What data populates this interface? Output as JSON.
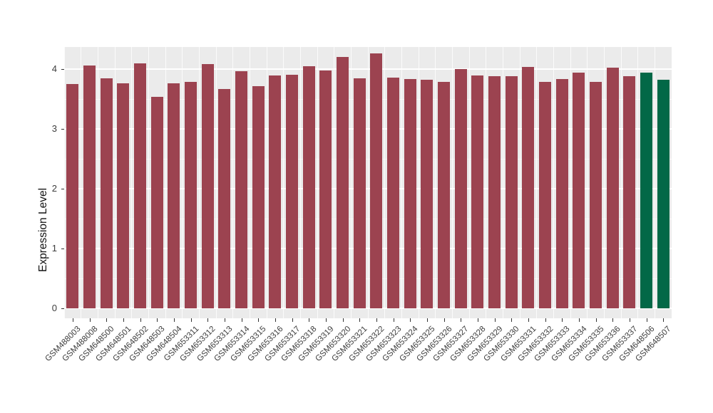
{
  "chart_data": {
    "type": "bar",
    "title": "",
    "xlabel": "",
    "ylabel": "Expression Level",
    "categories": [
      "GSM488003",
      "GSM488008",
      "GSM648500",
      "GSM648501",
      "GSM648502",
      "GSM648503",
      "GSM648504",
      "GSM653311",
      "GSM653312",
      "GSM653313",
      "GSM653314",
      "GSM653315",
      "GSM653316",
      "GSM653317",
      "GSM653318",
      "GSM653319",
      "GSM653320",
      "GSM653321",
      "GSM653322",
      "GSM653323",
      "GSM653324",
      "GSM653325",
      "GSM653326",
      "GSM653327",
      "GSM653328",
      "GSM653329",
      "GSM653330",
      "GSM653331",
      "GSM653332",
      "GSM653333",
      "GSM653334",
      "GSM653335",
      "GSM653336",
      "GSM653337",
      "GSM648506",
      "GSM648507"
    ],
    "values": [
      3.75,
      4.06,
      3.84,
      3.76,
      4.1,
      3.54,
      3.76,
      3.79,
      4.08,
      3.67,
      3.96,
      3.71,
      3.89,
      3.9,
      4.05,
      3.98,
      4.2,
      3.85,
      4.26,
      3.86,
      3.83,
      3.82,
      3.79,
      4.0,
      3.89,
      3.88,
      3.88,
      4.04,
      3.78,
      3.83,
      3.94,
      3.79,
      4.02,
      3.88,
      3.94,
      3.82
    ],
    "bar_colors": [
      "#9C4350",
      "#9C4350",
      "#9C4350",
      "#9C4350",
      "#9C4350",
      "#9C4350",
      "#9C4350",
      "#9C4350",
      "#9C4350",
      "#9C4350",
      "#9C4350",
      "#9C4350",
      "#9C4350",
      "#9C4350",
      "#9C4350",
      "#9C4350",
      "#9C4350",
      "#9C4350",
      "#9C4350",
      "#9C4350",
      "#9C4350",
      "#9C4350",
      "#9C4350",
      "#9C4350",
      "#9C4350",
      "#9C4350",
      "#9C4350",
      "#9C4350",
      "#9C4350",
      "#9C4350",
      "#9C4350",
      "#9C4350",
      "#9C4350",
      "#9C4350",
      "#026847",
      "#026847"
    ],
    "yticks": [
      0,
      1,
      2,
      3,
      4
    ],
    "ylim": [
      -0.17,
      4.37
    ],
    "grid": true,
    "legend": false,
    "colors": {
      "bar_default": "#9C4350",
      "bar_highlight": "#026847",
      "panel_background": "#EBEBEB",
      "gridline": "#FFFFFF",
      "axis_text": "#3d3d3d"
    }
  }
}
